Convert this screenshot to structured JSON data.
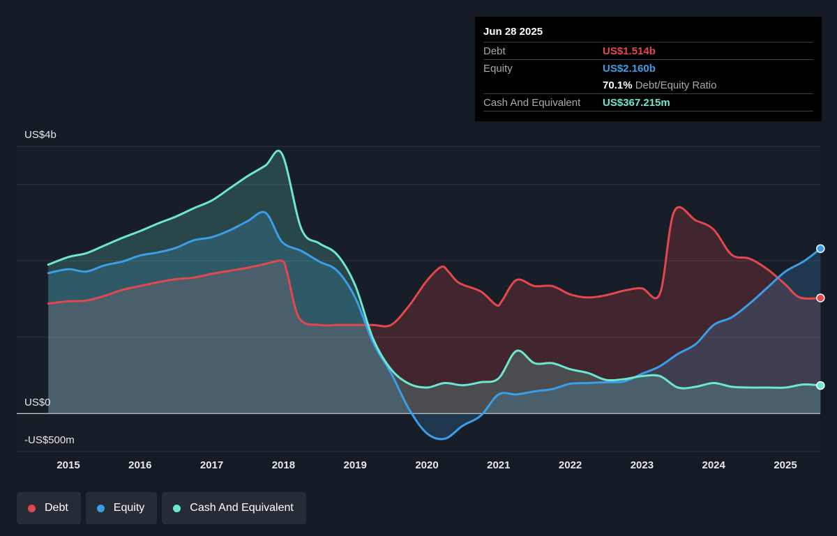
{
  "tooltip": {
    "date": "Jun 28 2025",
    "rows": [
      {
        "label": "Debt",
        "value": "US$1.514b",
        "color": "#e5474e"
      },
      {
        "label": "Equity",
        "value": "US$2.160b",
        "color": "#3b9ee8"
      },
      {
        "label": "",
        "value": "70.1%",
        "suffix": "Debt/Equity Ratio",
        "color": "#ffffff"
      },
      {
        "label": "Cash And Equivalent",
        "value": "US$367.215m",
        "color": "#6ee7d0"
      }
    ]
  },
  "legend": [
    {
      "label": "Debt",
      "color": "#e5474e"
    },
    {
      "label": "Equity",
      "color": "#3b9ee8"
    },
    {
      "label": "Cash And Equivalent",
      "color": "#6ee7d0"
    }
  ],
  "chart_data": {
    "type": "area",
    "ylabel_top": "US$4b",
    "ylabel_zero": "US$0",
    "ylabel_bottom": "-US$500m",
    "ylim": [
      -500,
      3500
    ],
    "xlim": [
      2014.75,
      2025.5
    ],
    "x_ticks": [
      {
        "value": 2015,
        "label": "2015"
      },
      {
        "value": 2016,
        "label": "2016"
      },
      {
        "value": 2017,
        "label": "2017"
      },
      {
        "value": 2018,
        "label": "2018"
      },
      {
        "value": 2019,
        "label": "2019"
      },
      {
        "value": 2020,
        "label": "2020"
      },
      {
        "value": 2021,
        "label": "2021"
      },
      {
        "value": 2022,
        "label": "2022"
      },
      {
        "value": 2023,
        "label": "2023"
      },
      {
        "value": 2024,
        "label": "2024"
      },
      {
        "value": 2025,
        "label": "2025"
      }
    ],
    "grid_y": [
      3500,
      3000,
      2000,
      1000,
      0,
      -500
    ],
    "series": [
      {
        "name": "Debt",
        "color": "#e5474e",
        "points": [
          [
            2014.72,
            1440
          ],
          [
            2015,
            1470
          ],
          [
            2015.25,
            1480
          ],
          [
            2015.5,
            1540
          ],
          [
            2015.75,
            1620
          ],
          [
            2016,
            1670
          ],
          [
            2016.25,
            1720
          ],
          [
            2016.5,
            1760
          ],
          [
            2016.75,
            1780
          ],
          [
            2017,
            1830
          ],
          [
            2017.25,
            1870
          ],
          [
            2017.5,
            1910
          ],
          [
            2017.75,
            1960
          ],
          [
            2017.98,
            2000
          ],
          [
            2018.05,
            1850
          ],
          [
            2018.22,
            1250
          ],
          [
            2018.5,
            1160
          ],
          [
            2018.75,
            1160
          ],
          [
            2019,
            1160
          ],
          [
            2019.25,
            1160
          ],
          [
            2019.5,
            1160
          ],
          [
            2019.75,
            1410
          ],
          [
            2020,
            1740
          ],
          [
            2020.2,
            1920
          ],
          [
            2020.3,
            1860
          ],
          [
            2020.45,
            1710
          ],
          [
            2020.75,
            1600
          ],
          [
            2020.97,
            1420
          ],
          [
            2021.05,
            1480
          ],
          [
            2021.25,
            1750
          ],
          [
            2021.5,
            1670
          ],
          [
            2021.75,
            1670
          ],
          [
            2022,
            1560
          ],
          [
            2022.25,
            1520
          ],
          [
            2022.5,
            1550
          ],
          [
            2022.75,
            1610
          ],
          [
            2023,
            1640
          ],
          [
            2023.25,
            1570
          ],
          [
            2023.45,
            2650
          ],
          [
            2023.75,
            2530
          ],
          [
            2024,
            2410
          ],
          [
            2024.25,
            2080
          ],
          [
            2024.5,
            2030
          ],
          [
            2024.75,
            1890
          ],
          [
            2025,
            1690
          ],
          [
            2025.2,
            1520
          ],
          [
            2025.49,
            1514
          ]
        ]
      },
      {
        "name": "Equity",
        "color": "#3b9ee8",
        "points": [
          [
            2014.72,
            1840
          ],
          [
            2015,
            1890
          ],
          [
            2015.25,
            1860
          ],
          [
            2015.5,
            1940
          ],
          [
            2015.75,
            1990
          ],
          [
            2016,
            2070
          ],
          [
            2016.25,
            2110
          ],
          [
            2016.5,
            2170
          ],
          [
            2016.75,
            2270
          ],
          [
            2017,
            2310
          ],
          [
            2017.25,
            2400
          ],
          [
            2017.5,
            2520
          ],
          [
            2017.75,
            2630
          ],
          [
            2017.98,
            2250
          ],
          [
            2018.25,
            2130
          ],
          [
            2018.5,
            1990
          ],
          [
            2018.75,
            1870
          ],
          [
            2019,
            1520
          ],
          [
            2019.25,
            930
          ],
          [
            2019.5,
            530
          ],
          [
            2019.75,
            60
          ],
          [
            2020,
            -260
          ],
          [
            2020.25,
            -330
          ],
          [
            2020.5,
            -160
          ],
          [
            2020.75,
            -30
          ],
          [
            2021,
            250
          ],
          [
            2021.25,
            250
          ],
          [
            2021.5,
            290
          ],
          [
            2021.75,
            320
          ],
          [
            2022,
            390
          ],
          [
            2022.25,
            400
          ],
          [
            2022.5,
            410
          ],
          [
            2022.75,
            420
          ],
          [
            2023,
            520
          ],
          [
            2023.25,
            620
          ],
          [
            2023.5,
            780
          ],
          [
            2023.75,
            910
          ],
          [
            2024,
            1160
          ],
          [
            2024.25,
            1260
          ],
          [
            2024.5,
            1440
          ],
          [
            2024.75,
            1650
          ],
          [
            2025,
            1860
          ],
          [
            2025.25,
            1990
          ],
          [
            2025.49,
            2160
          ]
        ]
      },
      {
        "name": "Cash And Equivalent",
        "color": "#6ee7d0",
        "points": [
          [
            2014.72,
            1950
          ],
          [
            2015,
            2050
          ],
          [
            2015.25,
            2100
          ],
          [
            2015.5,
            2200
          ],
          [
            2015.75,
            2300
          ],
          [
            2016,
            2390
          ],
          [
            2016.25,
            2490
          ],
          [
            2016.5,
            2580
          ],
          [
            2016.75,
            2690
          ],
          [
            2017,
            2790
          ],
          [
            2017.25,
            2950
          ],
          [
            2017.5,
            3110
          ],
          [
            2017.75,
            3250
          ],
          [
            2017.98,
            3400
          ],
          [
            2018.25,
            2420
          ],
          [
            2018.5,
            2230
          ],
          [
            2018.75,
            2080
          ],
          [
            2019,
            1680
          ],
          [
            2019.25,
            980
          ],
          [
            2019.5,
            580
          ],
          [
            2019.75,
            390
          ],
          [
            2020,
            340
          ],
          [
            2020.25,
            400
          ],
          [
            2020.5,
            370
          ],
          [
            2020.75,
            410
          ],
          [
            2021,
            460
          ],
          [
            2021.25,
            820
          ],
          [
            2021.5,
            660
          ],
          [
            2021.75,
            660
          ],
          [
            2022,
            580
          ],
          [
            2022.25,
            530
          ],
          [
            2022.5,
            440
          ],
          [
            2022.75,
            450
          ],
          [
            2023,
            490
          ],
          [
            2023.25,
            490
          ],
          [
            2023.5,
            340
          ],
          [
            2023.75,
            350
          ],
          [
            2024,
            400
          ],
          [
            2024.25,
            350
          ],
          [
            2024.5,
            340
          ],
          [
            2024.75,
            340
          ],
          [
            2025,
            340
          ],
          [
            2025.25,
            380
          ],
          [
            2025.49,
            367
          ]
        ]
      }
    ]
  }
}
